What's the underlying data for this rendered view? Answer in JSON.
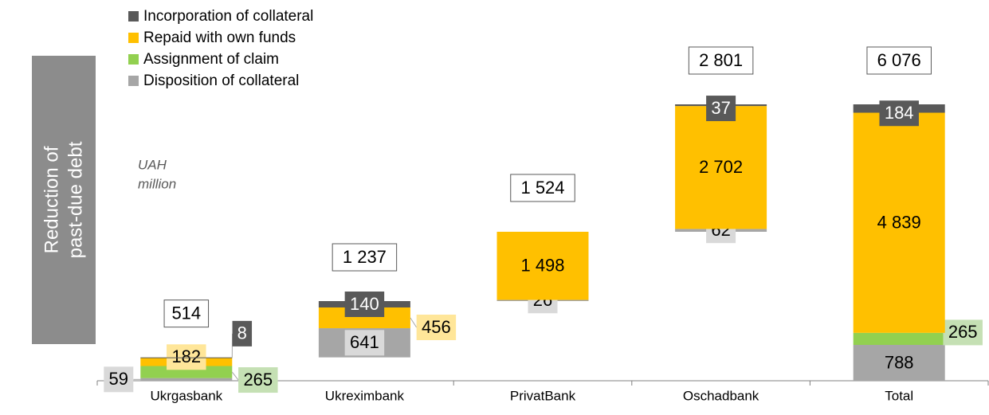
{
  "chart_data": {
    "type": "waterfall",
    "y_label": [
      "Reduction of",
      "past-due debt"
    ],
    "unit": [
      "UAH",
      "million"
    ],
    "categories": [
      "Ukrgasbank",
      "Ukreximbank",
      "PrivatBank",
      "Oschadbank",
      "Total"
    ],
    "series": [
      {
        "name": "Disposition of collateral",
        "color": "#a6a6a6",
        "values": [
          59,
          641,
          26,
          62,
          788
        ],
        "value_labels": [
          "59",
          "641",
          "26",
          "62",
          "788"
        ]
      },
      {
        "name": "Assignment of claim",
        "color": "#92d050",
        "values": [
          265,
          null,
          null,
          null,
          265
        ],
        "value_labels": [
          "265",
          null,
          null,
          null,
          "265"
        ]
      },
      {
        "name": "Repaid with own funds",
        "color": "#ffc000",
        "values": [
          182,
          456,
          1498,
          2702,
          4839
        ],
        "value_labels": [
          "182",
          "456",
          "1 498",
          "2 702",
          "4 839"
        ]
      },
      {
        "name": "Incorporation of collateral",
        "color": "#595959",
        "values": [
          8,
          140,
          null,
          37,
          184
        ],
        "value_labels": [
          "8",
          "140",
          null,
          "37",
          "184"
        ]
      }
    ],
    "totals": [
      514,
      1237,
      1524,
      2801,
      6076
    ],
    "total_labels": [
      "514",
      "1 237",
      "1 524",
      "2 801",
      "6 076"
    ],
    "ylim": [
      0,
      6100
    ]
  }
}
